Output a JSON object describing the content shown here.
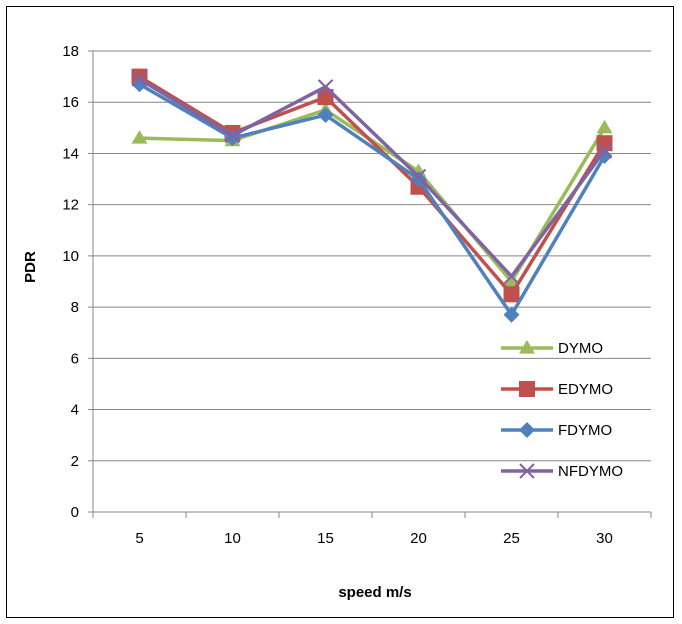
{
  "chart_data": {
    "type": "line",
    "title": "",
    "xlabel": "speed m/s",
    "ylabel": "PDR",
    "categories": [
      "5",
      "10",
      "15",
      "20",
      "25",
      "30"
    ],
    "ylim": [
      0,
      18
    ],
    "yticks": [
      "0",
      "2",
      "4",
      "6",
      "8",
      "10",
      "12",
      "14",
      "16",
      "18"
    ],
    "grid": "horizontal",
    "legend_position": "right",
    "series": [
      {
        "name": "DYMO",
        "values": [
          14.6,
          14.5,
          15.7,
          13.3,
          9.0,
          15.0
        ],
        "color": "#9BBB59",
        "marker": "triangle"
      },
      {
        "name": "EDYMO",
        "values": [
          17.0,
          14.8,
          16.2,
          12.7,
          8.5,
          14.4
        ],
        "color": "#C0504D",
        "marker": "square"
      },
      {
        "name": "FDYMO",
        "values": [
          16.7,
          14.6,
          15.5,
          13.0,
          7.7,
          13.9
        ],
        "color": "#4F81BD",
        "marker": "diamond"
      },
      {
        "name": "NFDYMO",
        "values": [
          16.9,
          14.7,
          16.6,
          13.1,
          9.2,
          14.1
        ],
        "color": "#8064A2",
        "marker": "x"
      }
    ]
  }
}
